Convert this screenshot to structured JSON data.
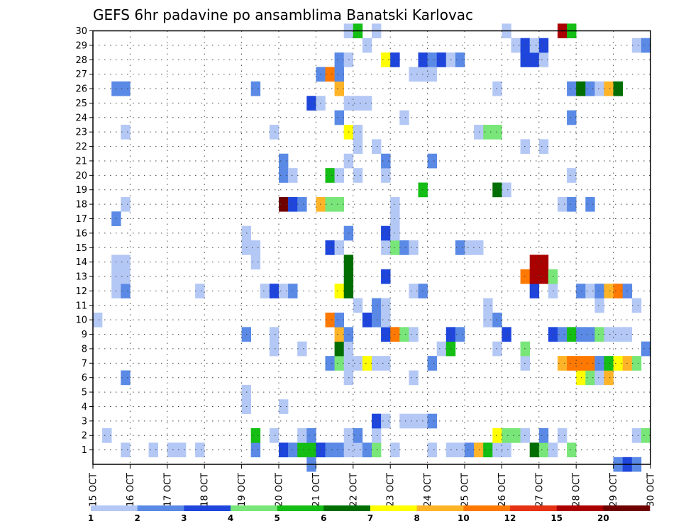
{
  "chart_data": {
    "type": "heatmap",
    "title": "GEFS 6hr padavine po ansamblima Banatski Karlovac",
    "xlabel": "",
    "ylabel": "",
    "x_tick_labels": [
      "15 OCT",
      "16 OCT",
      "17 OCT",
      "18 OCT",
      "19 OCT",
      "20 OCT",
      "21 OCT",
      "22 OCT",
      "23 OCT",
      "24 OCT",
      "25 OCT",
      "26 OCT",
      "27 OCT",
      "28 OCT",
      "29 OCT",
      "30 OCT"
    ],
    "y_tick_labels": [
      "1",
      "2",
      "3",
      "4",
      "5",
      "6",
      "7",
      "8",
      "9",
      "10",
      "11",
      "12",
      "13",
      "14",
      "15",
      "16",
      "17",
      "18",
      "19",
      "20",
      "21",
      "22",
      "23",
      "24",
      "25",
      "26",
      "27",
      "28",
      "29",
      "30"
    ],
    "x_unit": "6-hour steps from 15 OCT 00Z",
    "x_range": [
      0,
      60
    ],
    "y_range": [
      0,
      30
    ],
    "grid": true,
    "legend": {
      "placement": "bottom",
      "tick_labels": [
        "1",
        "2",
        "3",
        "4",
        "5",
        "6",
        "7",
        "8",
        "10",
        "12",
        "15",
        "20"
      ],
      "colors": [
        "#b4c8f5",
        "#5a8ae6",
        "#1e46dc",
        "#78e678",
        "#14be14",
        "#006e00",
        "#ffff00",
        "#ffb428",
        "#ff7800",
        "#e63214",
        "#aa0000",
        "#6e0000"
      ]
    },
    "cells": [
      [
        1,
        1,
        4
      ],
      [
        1,
        1,
        7
      ],
      [
        1,
        1,
        9
      ],
      [
        1,
        1,
        10
      ],
      [
        1,
        1,
        12
      ],
      [
        1,
        2,
        18
      ],
      [
        1,
        3,
        21
      ],
      [
        1,
        2,
        22
      ],
      [
        1,
        5,
        23
      ],
      [
        1,
        5,
        24
      ],
      [
        1,
        3,
        25
      ],
      [
        1,
        2,
        26
      ],
      [
        1,
        2,
        27
      ],
      [
        1,
        1,
        28
      ],
      [
        1,
        1,
        29
      ],
      [
        1,
        2,
        30
      ],
      [
        1,
        4,
        31
      ],
      [
        1,
        1,
        33
      ],
      [
        1,
        1,
        37
      ],
      [
        1,
        1,
        39
      ],
      [
        1,
        1,
        40
      ],
      [
        1,
        2,
        41
      ],
      [
        1,
        8,
        42
      ],
      [
        1,
        5,
        43
      ],
      [
        1,
        1,
        44
      ],
      [
        1,
        1,
        45
      ],
      [
        1,
        6,
        48
      ],
      [
        1,
        4,
        49
      ],
      [
        1,
        1,
        50
      ],
      [
        1,
        4,
        52
      ],
      [
        2,
        1,
        2
      ],
      [
        2,
        5,
        18
      ],
      [
        2,
        1,
        20
      ],
      [
        2,
        1,
        23
      ],
      [
        2,
        2,
        24
      ],
      [
        2,
        1,
        28
      ],
      [
        2,
        2,
        29
      ],
      [
        2,
        1,
        31
      ],
      [
        2,
        7,
        44
      ],
      [
        2,
        4,
        45
      ],
      [
        2,
        4,
        46
      ],
      [
        2,
        1,
        47
      ],
      [
        2,
        2,
        49
      ],
      [
        2,
        1,
        51
      ],
      [
        2,
        1,
        59
      ],
      [
        2,
        4,
        60
      ],
      [
        3,
        3,
        31
      ],
      [
        3,
        1,
        32
      ],
      [
        3,
        1,
        34
      ],
      [
        3,
        1,
        35
      ],
      [
        3,
        1,
        36
      ],
      [
        3,
        2,
        37
      ],
      [
        4,
        1,
        17
      ],
      [
        4,
        1,
        21
      ],
      [
        5,
        1,
        17
      ],
      [
        6,
        2,
        4
      ],
      [
        6,
        1,
        28
      ],
      [
        6,
        1,
        35
      ],
      [
        6,
        7,
        53
      ],
      [
        6,
        4,
        54
      ],
      [
        6,
        1,
        55
      ],
      [
        6,
        8,
        56
      ],
      [
        7,
        2,
        26
      ],
      [
        7,
        4,
        27
      ],
      [
        7,
        1,
        28
      ],
      [
        7,
        1,
        29
      ],
      [
        7,
        7,
        30
      ],
      [
        7,
        1,
        31
      ],
      [
        7,
        1,
        32
      ],
      [
        7,
        2,
        37
      ],
      [
        7,
        1,
        47
      ],
      [
        7,
        8,
        51
      ],
      [
        7,
        9,
        52
      ],
      [
        7,
        9,
        53
      ],
      [
        7,
        9,
        54
      ],
      [
        7,
        2,
        55
      ],
      [
        7,
        5,
        56
      ],
      [
        7,
        7,
        57
      ],
      [
        7,
        8,
        58
      ],
      [
        7,
        4,
        59
      ],
      [
        8,
        1,
        20
      ],
      [
        8,
        1,
        23
      ],
      [
        8,
        6,
        27
      ],
      [
        8,
        1,
        28
      ],
      [
        8,
        1,
        38
      ],
      [
        8,
        5,
        39
      ],
      [
        8,
        1,
        44
      ],
      [
        8,
        4,
        47
      ],
      [
        8,
        2,
        60
      ],
      [
        9,
        2,
        17
      ],
      [
        9,
        1,
        20
      ],
      [
        9,
        8,
        27
      ],
      [
        9,
        2,
        28
      ],
      [
        9,
        3,
        32
      ],
      [
        9,
        9,
        33
      ],
      [
        9,
        4,
        34
      ],
      [
        9,
        1,
        35
      ],
      [
        9,
        3,
        39
      ],
      [
        9,
        2,
        40
      ],
      [
        9,
        3,
        45
      ],
      [
        9,
        3,
        50
      ],
      [
        9,
        2,
        51
      ],
      [
        9,
        5,
        52
      ],
      [
        9,
        2,
        53
      ],
      [
        9,
        2,
        54
      ],
      [
        9,
        4,
        55
      ],
      [
        9,
        1,
        56
      ],
      [
        9,
        1,
        57
      ],
      [
        9,
        1,
        58
      ],
      [
        10,
        1,
        1
      ],
      [
        10,
        9,
        26
      ],
      [
        10,
        2,
        27
      ],
      [
        10,
        3,
        30
      ],
      [
        10,
        2,
        31
      ],
      [
        10,
        1,
        32
      ],
      [
        10,
        1,
        43
      ],
      [
        10,
        2,
        44
      ],
      [
        11,
        1,
        29
      ],
      [
        11,
        2,
        31
      ],
      [
        11,
        1,
        32
      ],
      [
        11,
        1,
        43
      ],
      [
        11,
        1,
        55
      ],
      [
        11,
        1,
        59
      ],
      [
        12,
        1,
        3
      ],
      [
        12,
        2,
        4
      ],
      [
        12,
        1,
        12
      ],
      [
        12,
        1,
        19
      ],
      [
        12,
        3,
        20
      ],
      [
        12,
        1,
        21
      ],
      [
        12,
        2,
        22
      ],
      [
        12,
        7,
        27
      ],
      [
        12,
        6,
        28
      ],
      [
        12,
        1,
        35
      ],
      [
        12,
        2,
        36
      ],
      [
        12,
        3,
        48
      ],
      [
        12,
        1,
        50
      ],
      [
        12,
        2,
        53
      ],
      [
        12,
        1,
        54
      ],
      [
        12,
        2,
        55
      ],
      [
        12,
        8,
        56
      ],
      [
        12,
        9,
        57
      ],
      [
        12,
        2,
        58
      ],
      [
        13,
        1,
        3
      ],
      [
        13,
        1,
        4
      ],
      [
        13,
        6,
        28
      ],
      [
        13,
        3,
        32
      ],
      [
        13,
        9,
        47
      ],
      [
        13,
        11,
        48
      ],
      [
        13,
        11,
        49
      ],
      [
        13,
        4,
        50
      ],
      [
        14,
        1,
        3
      ],
      [
        14,
        1,
        4
      ],
      [
        14,
        1,
        18
      ],
      [
        14,
        6,
        28
      ],
      [
        14,
        11,
        48
      ],
      [
        14,
        11,
        49
      ],
      [
        15,
        1,
        17
      ],
      [
        15,
        1,
        18
      ],
      [
        15,
        3,
        26
      ],
      [
        15,
        1,
        27
      ],
      [
        15,
        1,
        32
      ],
      [
        15,
        4,
        33
      ],
      [
        15,
        2,
        34
      ],
      [
        15,
        1,
        35
      ],
      [
        15,
        2,
        40
      ],
      [
        15,
        1,
        41
      ],
      [
        15,
        1,
        42
      ],
      [
        16,
        1,
        17
      ],
      [
        16,
        2,
        28
      ],
      [
        16,
        3,
        32
      ],
      [
        16,
        1,
        33
      ],
      [
        17,
        2,
        3
      ],
      [
        17,
        1,
        33
      ],
      [
        18,
        1,
        4
      ],
      [
        18,
        12,
        21
      ],
      [
        18,
        3,
        22
      ],
      [
        18,
        2,
        23
      ],
      [
        18,
        8,
        25
      ],
      [
        18,
        4,
        26
      ],
      [
        18,
        4,
        27
      ],
      [
        18,
        1,
        33
      ],
      [
        18,
        1,
        51
      ],
      [
        18,
        2,
        52
      ],
      [
        18,
        2,
        54
      ],
      [
        19,
        5,
        36
      ],
      [
        19,
        6,
        44
      ],
      [
        19,
        1,
        45
      ],
      [
        20,
        2,
        21
      ],
      [
        20,
        1,
        22
      ],
      [
        20,
        5,
        26
      ],
      [
        20,
        1,
        27
      ],
      [
        20,
        1,
        29
      ],
      [
        20,
        1,
        32
      ],
      [
        20,
        1,
        52
      ],
      [
        21,
        2,
        21
      ],
      [
        21,
        1,
        28
      ],
      [
        21,
        2,
        32
      ],
      [
        21,
        2,
        37
      ],
      [
        22,
        1,
        29
      ],
      [
        22,
        1,
        31
      ],
      [
        22,
        1,
        47
      ],
      [
        22,
        1,
        49
      ],
      [
        23,
        1,
        4
      ],
      [
        23,
        1,
        20
      ],
      [
        23,
        7,
        28
      ],
      [
        23,
        1,
        29
      ],
      [
        23,
        1,
        42
      ],
      [
        23,
        4,
        43
      ],
      [
        23,
        4,
        44
      ],
      [
        24,
        2,
        27
      ],
      [
        24,
        1,
        34
      ],
      [
        24,
        2,
        52
      ],
      [
        25,
        3,
        24
      ],
      [
        25,
        1,
        25
      ],
      [
        25,
        1,
        28
      ],
      [
        25,
        1,
        29
      ],
      [
        25,
        1,
        30
      ],
      [
        26,
        2,
        3
      ],
      [
        26,
        2,
        4
      ],
      [
        26,
        2,
        18
      ],
      [
        26,
        8,
        27
      ],
      [
        26,
        1,
        44
      ],
      [
        26,
        2,
        52
      ],
      [
        26,
        6,
        53
      ],
      [
        26,
        2,
        54
      ],
      [
        26,
        1,
        55
      ],
      [
        26,
        8,
        56
      ],
      [
        26,
        6,
        57
      ],
      [
        27,
        2,
        25
      ],
      [
        27,
        9,
        26
      ],
      [
        27,
        2,
        27
      ],
      [
        27,
        1,
        35
      ],
      [
        27,
        1,
        36
      ],
      [
        27,
        1,
        37
      ],
      [
        28,
        2,
        27
      ],
      [
        28,
        1,
        28
      ],
      [
        28,
        7,
        32
      ],
      [
        28,
        3,
        33
      ],
      [
        28,
        3,
        36
      ],
      [
        28,
        2,
        37
      ],
      [
        28,
        3,
        38
      ],
      [
        28,
        1,
        39
      ],
      [
        28,
        2,
        40
      ],
      [
        28,
        3,
        47
      ],
      [
        28,
        3,
        48
      ],
      [
        28,
        1,
        49
      ],
      [
        29,
        1,
        30
      ],
      [
        29,
        1,
        46
      ],
      [
        29,
        3,
        47
      ],
      [
        29,
        1,
        48
      ],
      [
        29,
        3,
        49
      ],
      [
        29,
        1,
        59
      ],
      [
        29,
        2,
        60
      ],
      [
        30,
        1,
        28
      ],
      [
        30,
        5,
        29
      ],
      [
        30,
        1,
        31
      ],
      [
        30,
        1,
        45
      ],
      [
        30,
        11,
        51
      ],
      [
        30,
        5,
        52
      ],
      [
        0,
        2,
        24
      ],
      [
        0,
        2,
        57
      ],
      [
        0,
        3,
        58
      ],
      [
        0,
        2,
        59
      ]
    ]
  }
}
